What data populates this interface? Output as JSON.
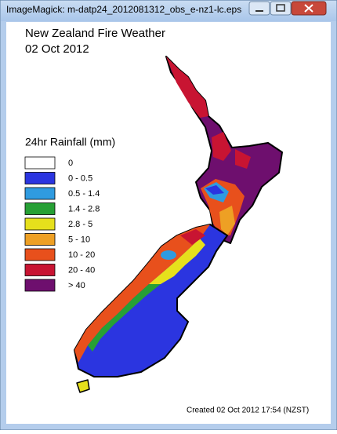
{
  "window": {
    "title": "ImageMagick: m-datp24_2012081312_obs_e-nz1-lc.eps"
  },
  "map": {
    "title": "New Zealand Fire Weather",
    "date": "02 Oct 2012",
    "legend": {
      "title": "24hr Rainfall (mm)",
      "items": [
        {
          "label": "0",
          "color": "#ffffff"
        },
        {
          "label": "0 - 0.5",
          "color": "#2b35e0"
        },
        {
          "label": "0.5 - 1.4",
          "color": "#2f9be0"
        },
        {
          "label": "1.4 - 2.8",
          "color": "#27a035"
        },
        {
          "label": "2.8 - 5",
          "color": "#e6e01c"
        },
        {
          "label": "5 - 10",
          "color": "#eea024"
        },
        {
          "label": "10 - 20",
          "color": "#e8501c"
        },
        {
          "label": "20 - 40",
          "color": "#c81432"
        },
        {
          "label": "> 40",
          "color": "#6e0f6e"
        }
      ]
    },
    "footer": "Created 02 Oct 2012 17:54 (NZST)"
  }
}
